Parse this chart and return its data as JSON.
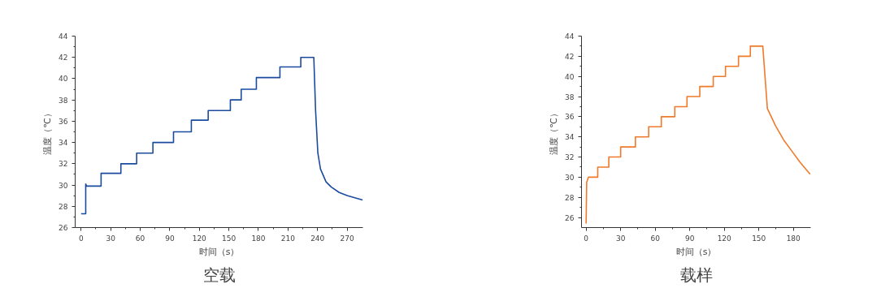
{
  "chart_data": [
    {
      "type": "line",
      "title": "空载",
      "xlabel": "时间（s）",
      "ylabel": "温度（℃）",
      "xlim": [
        -6,
        286
      ],
      "ylim": [
        26,
        44
      ],
      "xticks": [
        0,
        30,
        60,
        90,
        120,
        150,
        180,
        210,
        240,
        270
      ],
      "yticks": [
        26,
        28,
        30,
        32,
        34,
        36,
        38,
        40,
        42,
        44
      ],
      "grid": false,
      "x": [
        0,
        4.7,
        4.7,
        5.5,
        20.3,
        20.3,
        40.4,
        40.4,
        56.4,
        56.4,
        72.9,
        72.9,
        93.8,
        93.8,
        111.9,
        111.9,
        129,
        129,
        151.5,
        151.5,
        162.5,
        162.5,
        177.9,
        177.9,
        201.8,
        201.8,
        223,
        223,
        236.2,
        238,
        240.3,
        243,
        248.6,
        254,
        262,
        270.5,
        285.7
      ],
      "series": [
        {
          "color": "#1b4b9e",
          "values": [
            27.3,
            27.3,
            30.1,
            29.9,
            29.9,
            31.1,
            31.1,
            32,
            32,
            33,
            33,
            34,
            34,
            35,
            35,
            36.1,
            36.1,
            37,
            37,
            38,
            38,
            39,
            39,
            40.1,
            40.1,
            41.1,
            41.1,
            42,
            42,
            37,
            33,
            31.5,
            30.3,
            29.8,
            29.3,
            29.0,
            28.6
          ]
        }
      ]
    },
    {
      "type": "line",
      "title": "载样",
      "xlabel": "时间（s）",
      "ylabel": "温度（℃）",
      "xlim": [
        -4,
        195
      ],
      "ylim": [
        25,
        44
      ],
      "xticks": [
        0,
        30,
        60,
        90,
        120,
        150,
        180
      ],
      "yticks": [
        26,
        28,
        30,
        32,
        34,
        36,
        38,
        40,
        42,
        44
      ],
      "grid": false,
      "x": [
        0,
        0.5,
        2,
        10.1,
        10.1,
        19.7,
        19.7,
        30,
        30,
        42.8,
        42.8,
        54.3,
        54.3,
        65.3,
        65.3,
        77,
        77,
        87.6,
        87.6,
        98.7,
        98.7,
        110.4,
        110.4,
        121,
        121,
        132.3,
        132.3,
        142.6,
        142.6,
        153.4,
        157.4,
        164.5,
        171.5,
        178.6,
        185.6,
        194.5
      ],
      "series": [
        {
          "color": "#f07a2a",
          "values": [
            25.4,
            29.5,
            30,
            30,
            31,
            31,
            32,
            32,
            33,
            33,
            34,
            34,
            35,
            35,
            36,
            36,
            37,
            37,
            38,
            38,
            39,
            39,
            40,
            40,
            41,
            41,
            42,
            42,
            43,
            43,
            36.8,
            35.1,
            33.7,
            32.6,
            31.5,
            30.3
          ]
        }
      ]
    }
  ]
}
